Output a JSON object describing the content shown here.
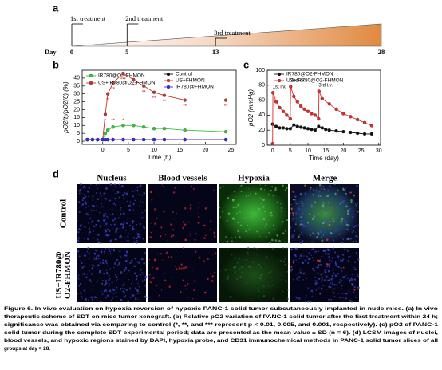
{
  "panel_a": {
    "label": "a",
    "treatments": [
      "1st treatment",
      "2nd treatment",
      "3rd treatment"
    ],
    "day_label": "Day",
    "days": [
      0,
      5,
      13,
      28
    ]
  },
  "chart_data": [
    {
      "type": "line",
      "label": "b",
      "xlabel": "Time (h)",
      "ylabel": "pO2(t)/pO2(0) (%)",
      "x": [
        -3,
        -2,
        -1,
        0,
        0.5,
        1,
        2,
        4,
        6,
        8,
        10,
        12,
        16,
        24
      ],
      "xlim": [
        -4,
        26
      ],
      "xticks": [
        0,
        5,
        10,
        15,
        20,
        25
      ],
      "ylim": [
        -2,
        45
      ],
      "yticks": [
        0,
        5,
        10,
        15,
        20,
        25,
        30,
        35,
        40
      ],
      "series": [
        {
          "name": "IR780@O2-FHMON",
          "color": "#35c43a",
          "values": [
            1,
            1,
            1,
            1,
            5,
            7,
            9,
            10,
            10,
            9,
            8,
            8,
            7,
            6
          ]
        },
        {
          "name": "US+IR780@O2-FHMON",
          "color": "#c8342c",
          "values": [
            1,
            1,
            1,
            1,
            17,
            30,
            37,
            43,
            39,
            35,
            31,
            29,
            26,
            26
          ]
        },
        {
          "name": "Control",
          "color": "#111111",
          "values": [
            1,
            1,
            1,
            1,
            1,
            1,
            1,
            1,
            1,
            1,
            1,
            1,
            1,
            1
          ]
        },
        {
          "name": "US+FHMON",
          "color": "#ff2a2a",
          "values": [
            1,
            1,
            1,
            1,
            1,
            1,
            1,
            1,
            1,
            1,
            1,
            1,
            1,
            1
          ]
        },
        {
          "name": "IR780@FHMON",
          "color": "#2a2aff",
          "values": [
            1,
            1,
            1,
            1,
            1,
            1,
            1,
            1,
            1,
            1,
            1,
            1,
            1,
            1
          ]
        }
      ],
      "annotations": [
        {
          "text": "*",
          "x": 0.5,
          "y": 13
        },
        {
          "text": "**",
          "x": 1,
          "y": 26
        },
        {
          "text": "**",
          "x": 2,
          "y": 33
        },
        {
          "text": "***",
          "x": 4,
          "y": 39
        },
        {
          "text": "***",
          "x": 6,
          "y": 35
        },
        {
          "text": "**",
          "x": 8,
          "y": 31
        },
        {
          "text": "**",
          "x": 10,
          "y": 27
        },
        {
          "text": "**",
          "x": 12,
          "y": 25
        },
        {
          "text": "**",
          "x": 16,
          "y": 22
        },
        {
          "text": "**",
          "x": 24,
          "y": 22
        },
        {
          "text": "**",
          "x": 2,
          "y": 13
        },
        {
          "text": "*",
          "x": 4,
          "y": 13
        }
      ]
    },
    {
      "type": "line",
      "label": "c",
      "xlabel": "Time (day)",
      "ylabel": "pO2 (mmHg)",
      "xlim": [
        -1.5,
        30.5
      ],
      "xticks": [
        0,
        5,
        10,
        15,
        20,
        25,
        30
      ],
      "ylim": [
        0,
        100
      ],
      "yticks": [
        0,
        20,
        40,
        60,
        80,
        100
      ],
      "series": [
        {
          "name": "IR780@O2-FHMON",
          "color": "#111111",
          "x": [
            0,
            1,
            2,
            3,
            4,
            5,
            6,
            7,
            8,
            9,
            10,
            11,
            12,
            13,
            14,
            15,
            16,
            18,
            20,
            22,
            24,
            26,
            28
          ],
          "values": [
            28,
            25,
            23,
            23,
            22,
            22,
            27,
            25,
            24,
            23,
            22,
            21,
            20,
            25,
            23,
            21,
            20,
            19,
            18,
            17,
            16,
            15,
            15
          ]
        },
        {
          "name": "US+IR780@O2-FHMON",
          "color": "#e02a2a",
          "x": [
            0,
            0.1,
            1,
            2,
            3,
            4,
            5,
            5.1,
            6,
            7,
            8,
            9,
            10,
            11,
            12,
            13,
            13.1,
            14,
            16,
            18,
            20,
            22,
            24,
            26,
            28
          ],
          "values": [
            2,
            70,
            58,
            50,
            45,
            40,
            35,
            78,
            65,
            58,
            52,
            48,
            45,
            42,
            40,
            35,
            72,
            62,
            55,
            48,
            42,
            38,
            34,
            30,
            26
          ]
        }
      ],
      "annotations": [
        {
          "text": "1st i.v.",
          "x": 0,
          "y": 78
        },
        {
          "text": "2nd i.v.",
          "x": 5,
          "y": 86
        },
        {
          "text": "3rd i.v.",
          "x": 13,
          "y": 80
        }
      ]
    }
  ],
  "panel_d": {
    "label": "d",
    "columns": [
      "Nucleus",
      "Blood vessels",
      "Hypoxia",
      "Merge"
    ],
    "rows": [
      [
        "Control"
      ],
      [
        "US+IR780@",
        "O2-FHMON"
      ]
    ]
  },
  "caption": [
    "Figure 6. In vivo evaluation on hypoxia reversion of hypoxic PANC-1 solid tumor subcutaneously implanted in nude mice. (a) In vivo",
    "therapeutic scheme of SDT on mice tumor xenograft. (b) Relative pO2 variation of PANC-1 solid tumor after the first treatment within 24 h;",
    "significance was obtained via comparing to control (*, **, and *** represent p < 0.01, 0.005, and 0.001, respectively). (c) pO2 of PANC-1",
    "solid tumor during the complete SDT experimental period; data are presented as the mean value ± SD (n = 6). (d) LCSM images of nuclei,",
    "blood vessels, and hypoxic regions stained by DAPI, hypoxia probe, and CD31 immunochemical methods in PANC-1 solid tumor slices of all",
    "groups at day = 28."
  ]
}
